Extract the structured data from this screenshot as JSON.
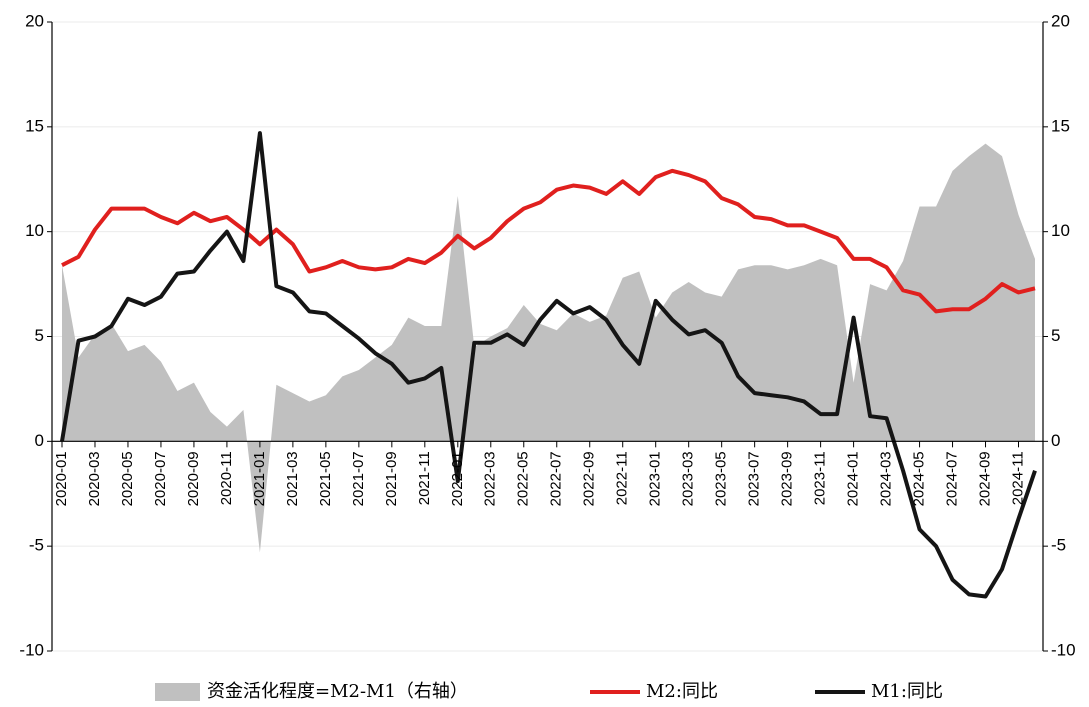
{
  "chart_data": {
    "type": "line",
    "categories": [
      "2020-01",
      null,
      "2020-03",
      null,
      "2020-05",
      null,
      "2020-07",
      null,
      "2020-09",
      null,
      "2020-11",
      null,
      "2021-01",
      null,
      "2021-03",
      null,
      "2021-05",
      null,
      "2021-07",
      null,
      "2021-09",
      null,
      "2021-11",
      null,
      "2022-01",
      null,
      "2022-03",
      null,
      "2022-05",
      null,
      "2022-07",
      null,
      "2022-09",
      null,
      "2022-11",
      null,
      "2023-01",
      null,
      "2023-03",
      null,
      "2023-05",
      null,
      "2023-07",
      null,
      "2023-09",
      null,
      "2023-11",
      null,
      "2024-01",
      null,
      "2024-03",
      null,
      "2024-05",
      null,
      "2024-07",
      null,
      "2024-09",
      null,
      "2024-11",
      null
    ],
    "series": [
      {
        "name": "资金活化程度=M2-M1（右轴）",
        "color": "#c0c0c0",
        "axis": "y2",
        "kind": "area",
        "values": [
          8.4,
          4.0,
          5.1,
          5.6,
          4.3,
          4.6,
          3.8,
          2.4,
          2.8,
          1.4,
          0.7,
          1.5,
          -5.3,
          2.7,
          2.3,
          1.9,
          2.2,
          3.1,
          3.4,
          4.0,
          4.6,
          5.9,
          5.5,
          5.5,
          11.7,
          4.5,
          5.0,
          5.4,
          6.5,
          5.6,
          5.3,
          6.1,
          5.7,
          6.0,
          7.8,
          8.1,
          5.9,
          7.1,
          7.6,
          7.1,
          6.9,
          8.2,
          8.4,
          8.4,
          8.2,
          8.4,
          8.7,
          8.4,
          2.8,
          7.5,
          7.2,
          8.6,
          11.2,
          11.2,
          12.9,
          13.6,
          14.2,
          13.6,
          10.8,
          8.7
        ]
      },
      {
        "name": "M2:同比",
        "color": "#e0201e",
        "values": [
          8.4,
          8.8,
          10.1,
          11.1,
          11.1,
          11.1,
          10.7,
          10.4,
          10.9,
          10.5,
          10.7,
          10.1,
          9.4,
          10.1,
          9.4,
          8.1,
          8.3,
          8.6,
          8.3,
          8.2,
          8.3,
          8.7,
          8.5,
          9.0,
          9.8,
          9.2,
          9.7,
          10.5,
          11.1,
          11.4,
          12.0,
          12.2,
          12.1,
          11.8,
          12.4,
          11.8,
          12.6,
          12.9,
          12.7,
          12.4,
          11.6,
          11.3,
          10.7,
          10.6,
          10.3,
          10.3,
          10.0,
          9.7,
          8.7,
          8.7,
          8.3,
          7.2,
          7.0,
          6.2,
          6.3,
          6.3,
          6.8,
          7.5,
          7.1,
          7.3
        ]
      },
      {
        "name": "M1:同比",
        "color": "#151515",
        "values": [
          0.0,
          4.8,
          5.0,
          5.5,
          6.8,
          6.5,
          6.9,
          8.0,
          8.1,
          9.1,
          10.0,
          8.6,
          14.7,
          7.4,
          7.1,
          6.2,
          6.1,
          5.5,
          4.9,
          4.2,
          3.7,
          2.8,
          3.0,
          3.5,
          -1.9,
          4.7,
          4.7,
          5.1,
          4.6,
          5.8,
          6.7,
          6.1,
          6.4,
          5.8,
          4.6,
          3.7,
          6.7,
          5.8,
          5.1,
          5.3,
          4.7,
          3.1,
          2.3,
          2.2,
          2.1,
          1.9,
          1.3,
          1.3,
          5.9,
          1.2,
          1.1,
          -1.4,
          -4.2,
          -5.0,
          -6.6,
          -7.3,
          -7.4,
          -6.1,
          -3.7,
          -1.4
        ]
      }
    ],
    "ylim": [
      -10,
      20
    ],
    "yticks": [
      -10,
      -5,
      0,
      5,
      10,
      15,
      20
    ],
    "y2lim": [
      -10,
      20
    ],
    "y2ticks": [
      -10,
      -5,
      0,
      5,
      10,
      15,
      20
    ],
    "grid": true,
    "legend": "bottom"
  }
}
